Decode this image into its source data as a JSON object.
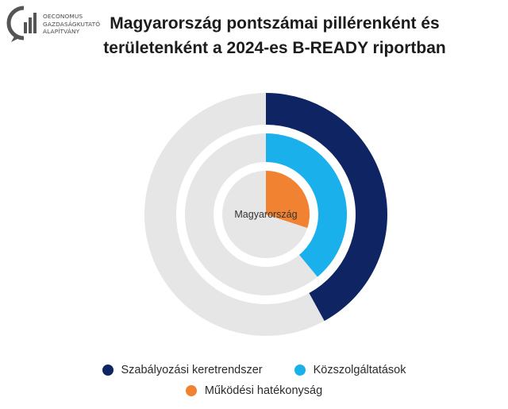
{
  "logo": {
    "lines": [
      "OECONOMUS",
      "GAZDASÁGKUTATÓ",
      "ALAPÍTVÁNY"
    ]
  },
  "title_lines": [
    "Magyarország pontszámai pillérenként és",
    "területenként a 2024-es B-READY riportban"
  ],
  "chart_data": {
    "type": "radial-bar",
    "center_label": "Magyarország",
    "max": 100,
    "series": [
      {
        "name": "Szabályozási keretrendszer",
        "value": 42,
        "color": "#0f2463"
      },
      {
        "name": "Közszolgáltatások",
        "value": 39,
        "color": "#19b0ec"
      },
      {
        "name": "Működési hatékonyság",
        "value": 30,
        "color": "#f08232"
      }
    ],
    "track_color": "#e6e6e6"
  },
  "legend": {
    "items": [
      {
        "label": "Szabályozási keretrendszer",
        "color": "#0f2463"
      },
      {
        "label": "Közszolgáltatások",
        "color": "#19b0ec"
      },
      {
        "label": "Működési hatékonyság",
        "color": "#f08232"
      }
    ]
  }
}
